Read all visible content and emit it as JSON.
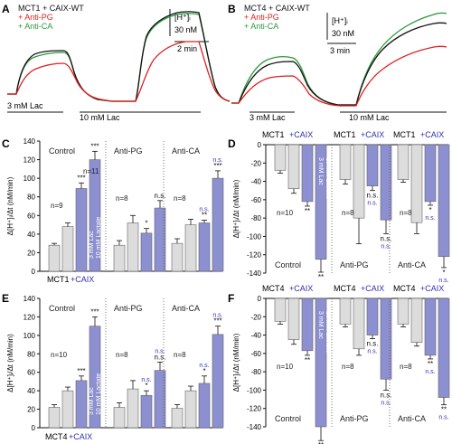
{
  "panels": {
    "A": {
      "letter": "A",
      "legend": [
        "MCT1 + CAIX-WT",
        "+ Anti-PG",
        "+ Anti-CA"
      ],
      "scale_y": "[H⁺]ᵢ",
      "scale_y_value": "30 nM",
      "scale_x": "2 min",
      "lac1": "3 mM Lac",
      "lac2": "10 mM Lac"
    },
    "B": {
      "letter": "B",
      "legend": [
        "MCT4 + CAIX-WT",
        "+ Anti-PG",
        "+ Anti-CA"
      ],
      "scale_y": "[H⁺]ᵢ",
      "scale_y_value": "30 nM",
      "scale_x": "3 min",
      "lac1": "3 mM Lac",
      "lac2": "10 mM Lac"
    },
    "C": {
      "letter": "C",
      "xlabel_left": "MCT1",
      "xlabel_right": "+CAIX"
    },
    "D": {
      "letter": "D",
      "top_labels": [
        [
          "MCT1",
          "+CAIX"
        ],
        [
          "MCT1",
          "+CAIX"
        ],
        [
          "MCT1",
          "+CAIX"
        ]
      ]
    },
    "E": {
      "letter": "E",
      "xlabel_left": "MCT4",
      "xlabel_right": "+CAIX"
    },
    "F": {
      "letter": "F",
      "top_labels": [
        [
          "MCT4",
          "+CAIX"
        ],
        [
          "MCT4",
          "+CAIX"
        ],
        [
          "MCT4",
          "+CAIX"
        ]
      ]
    }
  },
  "colors": {
    "black": "#111111",
    "red": "#e02020",
    "green": "#2a9a3a",
    "grey": "#dcdcdc",
    "blue": "#8c8fd0",
    "blue_text": "#3030b0"
  },
  "chart_data": [
    {
      "panel": "C",
      "type": "bar",
      "ylabel": "Δ[H⁺]ᵢ/Δt (nM/min)",
      "ylim": [
        0,
        140
      ],
      "yticks": [
        0,
        20,
        40,
        60,
        80,
        100,
        120,
        140
      ],
      "groups": [
        {
          "label": "Control",
          "n": [
            "n=9",
            "n=11"
          ],
          "values": [
            28,
            48,
            89,
            120
          ],
          "errors": [
            2,
            4,
            6,
            9
          ],
          "sig": [
            "",
            "",
            "***",
            "***"
          ],
          "inbar_text": [
            "3 mM Lac",
            "10 mM Lactate"
          ]
        },
        {
          "label": "Anti-PG",
          "n": [
            "n=8"
          ],
          "values": [
            28,
            52,
            41,
            68
          ],
          "errors": [
            5,
            8,
            5,
            8
          ],
          "sig": [
            "",
            "",
            "*",
            "n.s."
          ]
        },
        {
          "label": "Anti-CA",
          "n": [
            "n=8"
          ],
          "values": [
            30,
            50,
            52,
            100
          ],
          "errors": [
            5,
            6,
            3,
            8
          ],
          "sig": [
            "",
            "",
            "**",
            "***"
          ],
          "sig_blue": [
            "",
            "",
            "n.s.",
            "n.s."
          ]
        }
      ],
      "xlabel": "MCT1 +CAIX"
    },
    {
      "panel": "D",
      "type": "bar",
      "direction": "down",
      "ylabel": "Δ[H⁺]ᵢ/Δt (nM/min)",
      "ylim": [
        -140,
        0
      ],
      "yticks": [
        0,
        -20,
        -40,
        -60,
        -80,
        -100,
        -120,
        -140
      ],
      "groups": [
        {
          "label": "Control",
          "n": [
            "n=10"
          ],
          "values": [
            -28,
            -48,
            -62,
            -125
          ],
          "errors": [
            3,
            5,
            5,
            14
          ],
          "sig": [
            "",
            "",
            "**",
            "**"
          ],
          "inbar_text": [
            "3 mM Lac",
            "10 mM Lactate"
          ]
        },
        {
          "label": "Anti-PG",
          "n": [
            "n=8"
          ],
          "values": [
            -38,
            -80,
            -45,
            -82
          ],
          "errors": [
            5,
            28,
            5,
            15
          ],
          "sig": [
            "",
            "",
            "n.s.",
            "n.s."
          ],
          "sig_blue": [
            "",
            "",
            "n.s.",
            "n.s."
          ]
        },
        {
          "label": "Anti-CA",
          "n": [
            "n=8"
          ],
          "values": [
            -38,
            -85,
            -62,
            -122
          ],
          "errors": [
            3,
            12,
            4,
            12
          ],
          "sig": [
            "",
            "",
            "*",
            "*"
          ],
          "sig_blue": [
            "",
            "",
            "n.s.",
            "n.s."
          ]
        }
      ],
      "xlabel": "MCT1 +CAIX"
    },
    {
      "panel": "E",
      "type": "bar",
      "ylabel": "Δ[H⁺]ᵢ/Δt (nM/min)",
      "ylim": [
        0,
        140
      ],
      "yticks": [
        0,
        20,
        40,
        60,
        80,
        100,
        120,
        140
      ],
      "groups": [
        {
          "label": "Control",
          "n": [
            "n=10"
          ],
          "values": [
            22,
            40,
            51,
            110
          ],
          "errors": [
            3,
            4,
            5,
            10
          ],
          "sig": [
            "",
            "",
            "***",
            "***"
          ],
          "inbar_text": [
            "3 mM Lac",
            "10 mM Lactate"
          ]
        },
        {
          "label": "Anti-PG",
          "n": [
            "n=8"
          ],
          "values": [
            22,
            42,
            35,
            62
          ],
          "errors": [
            5,
            9,
            5,
            9
          ],
          "sig": [
            "",
            "",
            "*",
            "n.s."
          ],
          "sig_blue": [
            "",
            "",
            "n.s.",
            "n.s."
          ]
        },
        {
          "label": "Anti-CA",
          "n": [
            "n=8"
          ],
          "values": [
            21,
            40,
            48,
            101
          ],
          "errors": [
            4,
            5,
            8,
            9
          ],
          "sig": [
            "",
            "",
            "*",
            "***"
          ],
          "sig_blue": [
            "",
            "",
            "n.s.",
            "n.s."
          ]
        }
      ],
      "xlabel": "MCT4 +CAIX"
    },
    {
      "panel": "F",
      "type": "bar",
      "direction": "down",
      "ylabel": "Δ[H⁺]ᵢ/Δt (nM/min)",
      "ylim": [
        -140,
        0
      ],
      "yticks": [
        0,
        -20,
        -40,
        -60,
        -80,
        -100,
        -120,
        -140
      ],
      "groups": [
        {
          "label": "Control",
          "n": [
            "n=10"
          ],
          "values": [
            -25,
            -45,
            -57,
            -140
          ],
          "errors": [
            3,
            5,
            5,
            15
          ],
          "sig": [
            "",
            "",
            "**",
            "**"
          ],
          "inbar_text": [
            "3 mM Lac",
            "10 mM Lactate"
          ]
        },
        {
          "label": "Anti-PG",
          "n": [
            "n=8"
          ],
          "values": [
            -28,
            -55,
            -40,
            -88
          ],
          "errors": [
            3,
            7,
            4,
            12
          ],
          "sig": [
            "",
            "",
            "n.s.",
            "n.s."
          ],
          "sig_blue": [
            "",
            "",
            "n.s.",
            "n.s."
          ]
        },
        {
          "label": "Anti-CA",
          "n": [
            "n=8"
          ],
          "values": [
            -28,
            -48,
            -62,
            -108
          ],
          "errors": [
            3,
            4,
            4,
            8
          ],
          "sig": [
            "",
            "",
            "**",
            "**"
          ],
          "sig_blue": [
            "",
            "",
            "n.s.",
            "n.s."
          ]
        }
      ],
      "xlabel": "MCT4 +CAIX"
    }
  ]
}
